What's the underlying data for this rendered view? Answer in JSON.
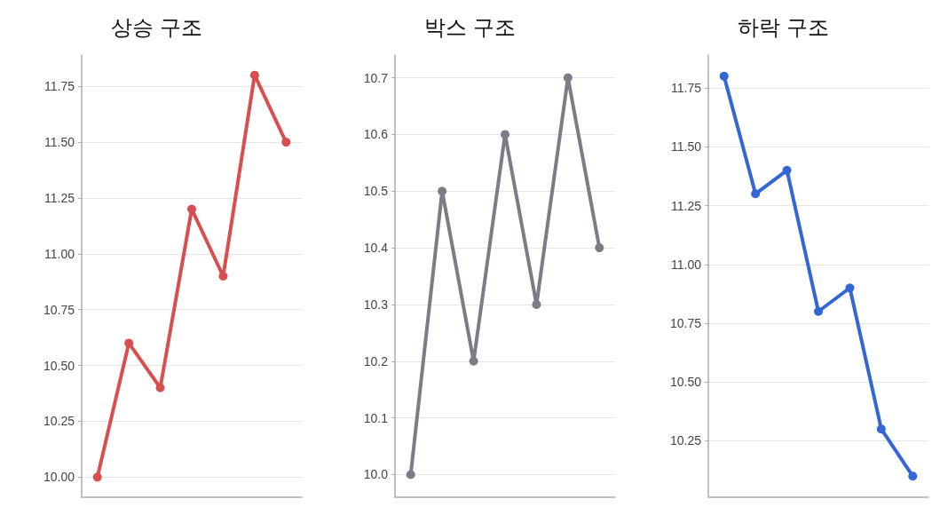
{
  "chart_data": [
    {
      "type": "line",
      "title": "상승 구조",
      "categories": [
        null,
        null,
        null,
        null,
        null,
        null,
        null
      ],
      "series": [
        {
          "color": "#d94f4f",
          "values": [
            10.0,
            10.6,
            10.4,
            11.2,
            10.9,
            11.8,
            11.5
          ]
        }
      ],
      "ylim": [
        9.91,
        11.89
      ],
      "yticks": [
        {
          "value": 10,
          "label": "10.00"
        },
        {
          "value": 10.25,
          "label": "10.25"
        },
        {
          "value": 10.5,
          "label": "10.50"
        },
        {
          "value": 10.75,
          "label": "10.75"
        },
        {
          "value": 11,
          "label": "11.00"
        },
        {
          "value": 11.25,
          "label": "11.25"
        },
        {
          "value": 11.5,
          "label": "11.50"
        },
        {
          "value": 11.75,
          "label": "11.75"
        }
      ],
      "grid": "y",
      "marker": "circle",
      "line_style": "solid",
      "tick_labels": "y"
    },
    {
      "type": "line",
      "title": "박스 구조",
      "categories": [
        null,
        null,
        null,
        null,
        null,
        null,
        null
      ],
      "series": [
        {
          "color": "#7a7d85",
          "values": [
            10.0,
            10.5,
            10.2,
            10.6,
            10.3,
            10.7,
            10.4
          ]
        }
      ],
      "ylim": [
        9.96,
        10.74
      ],
      "yticks": [
        {
          "value": 10,
          "label": "10.0"
        },
        10.1,
        10.2,
        10.3,
        10.4,
        10.5,
        10.6,
        10.7
      ],
      "grid": "y",
      "marker": "circle",
      "line_style": "solid",
      "tick_labels": "y"
    },
    {
      "type": "line",
      "title": "하락 구조",
      "categories": [
        null,
        null,
        null,
        null,
        null,
        null,
        null
      ],
      "series": [
        {
          "color": "#3366d6",
          "values": [
            11.8,
            11.3,
            11.4,
            10.8,
            10.9,
            10.3,
            10.1
          ]
        }
      ],
      "ylim": [
        10.01,
        11.89
      ],
      "yticks": [
        {
          "value": 10.25,
          "label": "10.25"
        },
        {
          "value": 10.5,
          "label": "10.50"
        },
        {
          "value": 10.75,
          "label": "10.75"
        },
        {
          "value": 11,
          "label": "11.00"
        },
        {
          "value": 11.25,
          "label": "11.25"
        },
        {
          "value": 11.5,
          "label": "11.50"
        },
        {
          "value": 11.75,
          "label": "11.75"
        }
      ],
      "grid": "y",
      "marker": "circle",
      "line_style": "solid",
      "tick_labels": "y"
    }
  ]
}
